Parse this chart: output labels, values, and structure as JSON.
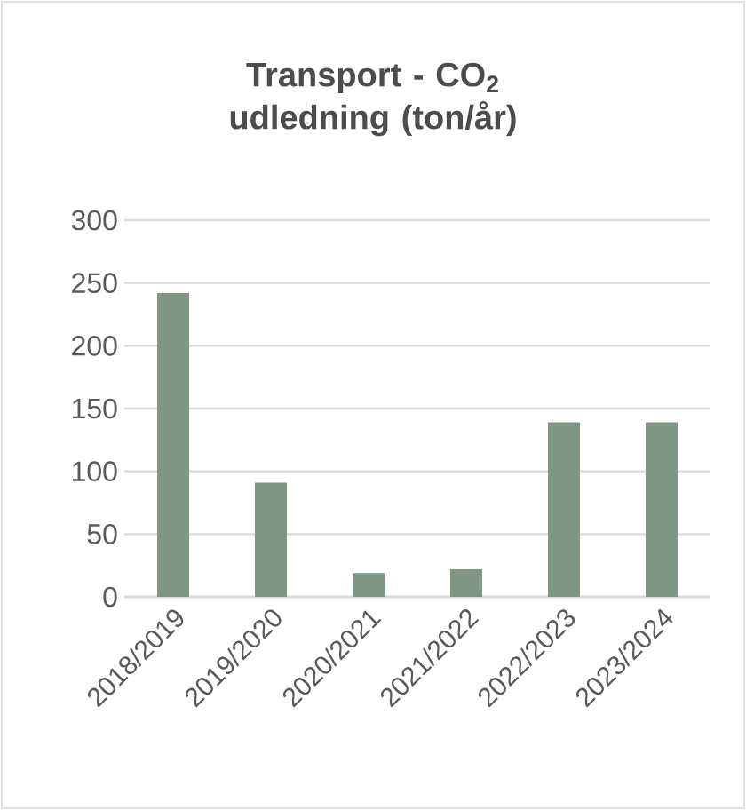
{
  "chart_data": {
    "type": "bar",
    "title": "Transport - CO$_{2}$ udledning (ton/år)",
    "categories": [
      "2018/2019",
      "2019/2020",
      "2020/2021",
      "2021/2022",
      "2022/2023",
      "2023/2024"
    ],
    "values": [
      242,
      91,
      19,
      22,
      139,
      139
    ],
    "color": "#7f9683",
    "ylim": [
      0,
      300
    ],
    "yticks": [
      0,
      50,
      100,
      150,
      200,
      250,
      300
    ],
    "grid": "y"
  }
}
